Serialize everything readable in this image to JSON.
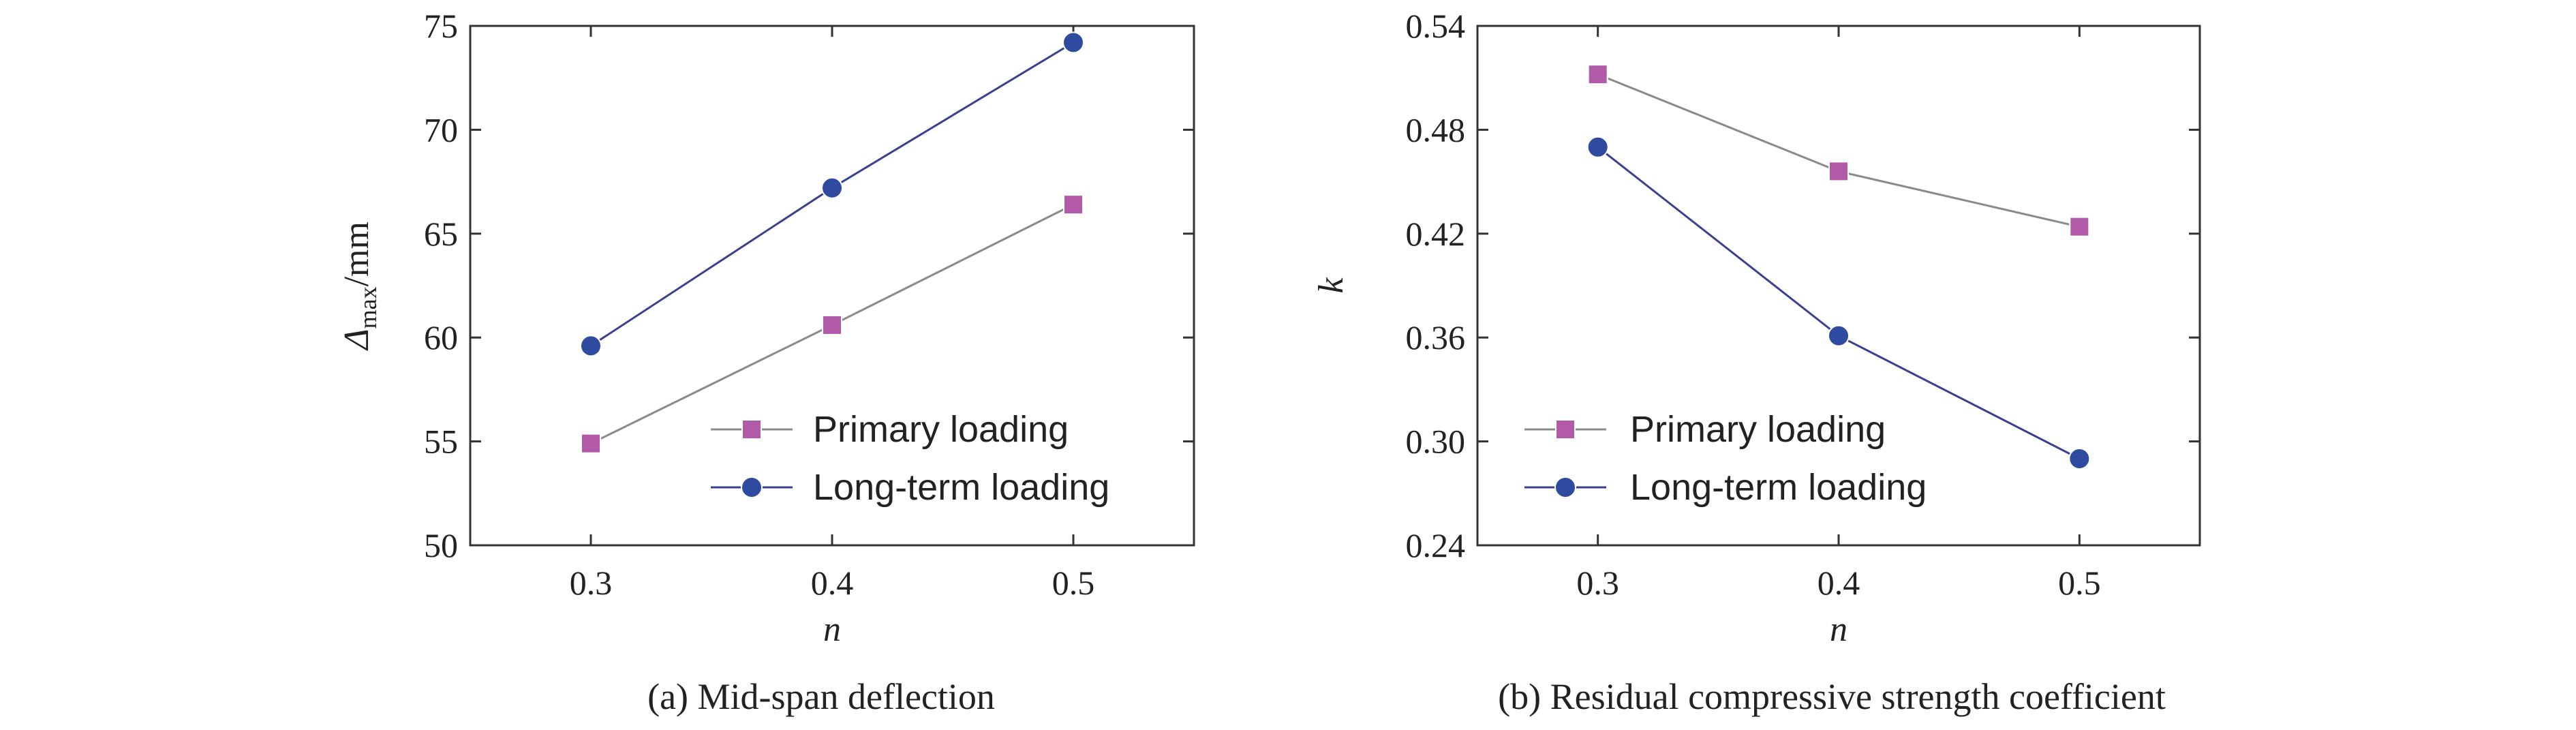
{
  "chart_data": [
    {
      "type": "line",
      "caption": "(a) Mid-span deflection",
      "xlabel": "n",
      "ylabel_main": "Δ",
      "ylabel_sub": "max",
      "ylabel_unit": "/mm",
      "x": [
        0.3,
        0.4,
        0.5
      ],
      "xlim": [
        0.25,
        0.55
      ],
      "ylim": [
        50,
        75
      ],
      "x_ticks": [
        "0.3",
        "0.4",
        "0.5"
      ],
      "y_ticks": [
        "50",
        "55",
        "60",
        "65",
        "70",
        "75"
      ],
      "legend_position": "bottom-right",
      "grid": false,
      "series": [
        {
          "name": "Primary loading",
          "marker": "square",
          "color": "#b05aa8",
          "line_color": "#8a8a8a",
          "values": [
            54.9,
            60.6,
            66.4
          ]
        },
        {
          "name": "Long-term loading",
          "marker": "circle",
          "color": "#2e4ba0",
          "line_color": "#3a3f8f",
          "values": [
            59.6,
            67.2,
            74.2
          ]
        }
      ]
    },
    {
      "type": "line",
      "caption": "(b) Residual compressive strength coefficient",
      "xlabel": "n",
      "ylabel_main": "k",
      "ylabel_sub": "",
      "ylabel_unit": "",
      "x": [
        0.3,
        0.4,
        0.5
      ],
      "xlim": [
        0.25,
        0.55
      ],
      "ylim": [
        0.24,
        0.54
      ],
      "x_ticks": [
        "0.3",
        "0.4",
        "0.5"
      ],
      "y_ticks": [
        "0.24",
        "0.30",
        "0.36",
        "0.42",
        "0.48",
        "0.54"
      ],
      "legend_position": "bottom-left",
      "grid": false,
      "series": [
        {
          "name": "Primary loading",
          "marker": "square",
          "color": "#b05aa8",
          "line_color": "#8a8a8a",
          "values": [
            0.512,
            0.456,
            0.424
          ]
        },
        {
          "name": "Long-term loading",
          "marker": "circle",
          "color": "#2e4ba0",
          "line_color": "#3a3f8f",
          "values": [
            0.47,
            0.361,
            0.29
          ]
        }
      ]
    }
  ]
}
